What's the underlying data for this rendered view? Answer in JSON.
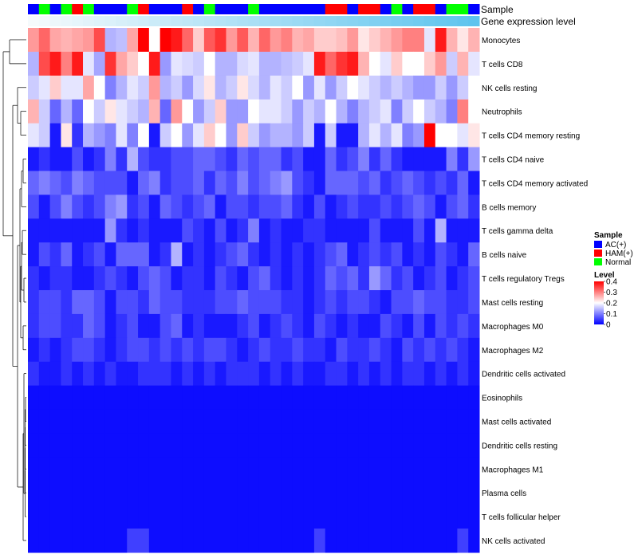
{
  "chart_data": {
    "type": "heatmap",
    "annotation_labels": {
      "sample": "Sample",
      "expression": "Gene expression level"
    },
    "legend_sample": {
      "title": "Sample",
      "items": [
        {
          "label": "AC(+)",
          "color": "#0000ff"
        },
        {
          "label": "HAM(+)",
          "color": "#ff0000"
        },
        {
          "label": "Normal",
          "color": "#00ff00"
        }
      ]
    },
    "legend_level": {
      "title": "Level",
      "range": [
        0,
        0.4
      ],
      "ticks": [
        "0.4",
        "0.3",
        "0.2",
        "0.1",
        "0"
      ],
      "tick_values": [
        0.4,
        0.3,
        0.2,
        0.1,
        0
      ],
      "colors": {
        "low": "#0000ff",
        "mid": "#ffffff",
        "high": "#ff0000",
        "mid_value": 0.2
      }
    },
    "expression_bar_color": "#5ec4ee",
    "sample_groups": [
      "AC",
      "N",
      "AC",
      "N",
      "H",
      "N",
      "AC",
      "AC",
      "AC",
      "N",
      "H",
      "AC",
      "AC",
      "AC",
      "H",
      "AC",
      "N",
      "AC",
      "AC",
      "AC",
      "N",
      "AC",
      "AC",
      "AC",
      "AC",
      "AC",
      "AC",
      "H",
      "H",
      "AC",
      "H",
      "H",
      "AC",
      "N",
      "AC",
      "H",
      "H",
      "AC",
      "N",
      "N",
      "AC"
    ],
    "rows": [
      {
        "label": "Monocytes",
        "values": [
          0.28,
          0.32,
          0.27,
          0.26,
          0.27,
          0.28,
          0.34,
          0.14,
          0.15,
          0.27,
          0.4,
          0.2,
          0.4,
          0.38,
          0.32,
          0.24,
          0.33,
          0.36,
          0.28,
          0.33,
          0.26,
          0.32,
          0.28,
          0.3,
          0.26,
          0.27,
          0.24,
          0.24,
          0.25,
          0.28,
          0.22,
          0.24,
          0.26,
          0.28,
          0.3,
          0.3,
          0.18,
          0.38,
          0.26,
          0.22,
          0.26
        ]
      },
      {
        "label": "T cells CD8",
        "values": [
          0.14,
          0.34,
          0.38,
          0.3,
          0.38,
          0.18,
          0.13,
          0.36,
          0.27,
          0.24,
          0.2,
          0.38,
          0.12,
          0.18,
          0.17,
          0.16,
          0.2,
          0.14,
          0.14,
          0.17,
          0.18,
          0.14,
          0.14,
          0.15,
          0.16,
          0.18,
          0.38,
          0.32,
          0.36,
          0.38,
          0.26,
          0.2,
          0.18,
          0.24,
          0.2,
          0.2,
          0.24,
          0.28,
          0.16,
          0.26,
          0.18
        ]
      },
      {
        "label": "NK cells resting",
        "values": [
          0.16,
          0.18,
          0.24,
          0.18,
          0.18,
          0.27,
          0.2,
          0.1,
          0.14,
          0.18,
          0.16,
          0.28,
          0.14,
          0.16,
          0.12,
          0.17,
          0.22,
          0.14,
          0.16,
          0.22,
          0.17,
          0.14,
          0.18,
          0.16,
          0.2,
          0.12,
          0.18,
          0.12,
          0.16,
          0.2,
          0.18,
          0.16,
          0.14,
          0.16,
          0.14,
          0.12,
          0.12,
          0.16,
          0.12,
          0.16,
          0.2
        ]
      },
      {
        "label": "Neutrophils",
        "values": [
          0.26,
          0.16,
          0.08,
          0.14,
          0.08,
          0.2,
          0.16,
          0.22,
          0.18,
          0.16,
          0.14,
          0.26,
          0.08,
          0.28,
          0.2,
          0.12,
          0.16,
          0.24,
          0.12,
          0.12,
          0.2,
          0.18,
          0.18,
          0.16,
          0.12,
          0.16,
          0.14,
          0.2,
          0.14,
          0.1,
          0.14,
          0.16,
          0.18,
          0.1,
          0.16,
          0.2,
          0.16,
          0.14,
          0.1,
          0.3,
          0.2
        ]
      },
      {
        "label": "T cells CD4 memory resting",
        "values": [
          0.18,
          0.16,
          0.02,
          0.22,
          0.04,
          0.14,
          0.12,
          0.1,
          0.18,
          0.1,
          0.2,
          0.02,
          0.16,
          0.2,
          0.12,
          0.18,
          0.24,
          0.2,
          0.12,
          0.24,
          0.16,
          0.12,
          0.14,
          0.14,
          0.12,
          0.16,
          0.02,
          0.16,
          0.02,
          0.02,
          0.14,
          0.18,
          0.14,
          0.18,
          0.1,
          0.12,
          0.4,
          0.2,
          0.2,
          0.18,
          0.22
        ]
      },
      {
        "label": "T cells CD4 naive",
        "values": [
          0.02,
          0.04,
          0.02,
          0.02,
          0.06,
          0.02,
          0.04,
          0.1,
          0.04,
          0.14,
          0.06,
          0.04,
          0.04,
          0.06,
          0.06,
          0.08,
          0.08,
          0.06,
          0.04,
          0.08,
          0.06,
          0.08,
          0.08,
          0.04,
          0.06,
          0.02,
          0.02,
          0.08,
          0.04,
          0.06,
          0.1,
          0.04,
          0.08,
          0.04,
          0.02,
          0.02,
          0.02,
          0.02,
          0.1,
          0.04,
          0.12
        ]
      },
      {
        "label": "T cells CD4 memory activated",
        "values": [
          0.08,
          0.1,
          0.08,
          0.06,
          0.1,
          0.08,
          0.06,
          0.06,
          0.06,
          0.02,
          0.08,
          0.1,
          0.04,
          0.06,
          0.06,
          0.08,
          0.04,
          0.08,
          0.06,
          0.1,
          0.06,
          0.08,
          0.1,
          0.12,
          0.06,
          0.04,
          0.02,
          0.08,
          0.08,
          0.08,
          0.06,
          0.08,
          0.04,
          0.06,
          0.08,
          0.06,
          0.04,
          0.06,
          0.04,
          0.08,
          0.02
        ]
      },
      {
        "label": "B cells memory",
        "values": [
          0.06,
          0.02,
          0.06,
          0.1,
          0.06,
          0.04,
          0.06,
          0.1,
          0.12,
          0.04,
          0.06,
          0.02,
          0.08,
          0.06,
          0.04,
          0.06,
          0.08,
          0.02,
          0.06,
          0.06,
          0.04,
          0.06,
          0.06,
          0.08,
          0.04,
          0.02,
          0.06,
          0.02,
          0.04,
          0.06,
          0.04,
          0.04,
          0.06,
          0.04,
          0.06,
          0.08,
          0.06,
          0.02,
          0.06,
          0.08,
          0.04
        ]
      },
      {
        "label": "T cells gamma delta",
        "values": [
          0.02,
          0.02,
          0.02,
          0.02,
          0.02,
          0.02,
          0.02,
          0.12,
          0.04,
          0.02,
          0.04,
          0.02,
          0.02,
          0.02,
          0.06,
          0.04,
          0.02,
          0.06,
          0.02,
          0.04,
          0.1,
          0.02,
          0.04,
          0.02,
          0.02,
          0.04,
          0.04,
          0.02,
          0.02,
          0.02,
          0.02,
          0.06,
          0.02,
          0.02,
          0.02,
          0.06,
          0.02,
          0.14,
          0.02,
          0.02,
          0.02
        ]
      },
      {
        "label": "B cells naive",
        "values": [
          0.02,
          0.06,
          0.04,
          0.08,
          0.02,
          0.04,
          0.06,
          0.02,
          0.08,
          0.08,
          0.08,
          0.02,
          0.04,
          0.14,
          0.02,
          0.04,
          0.02,
          0.04,
          0.06,
          0.08,
          0.04,
          0.02,
          0.04,
          0.02,
          0.04,
          0.02,
          0.04,
          0.06,
          0.08,
          0.02,
          0.04,
          0.06,
          0.04,
          0.06,
          0.02,
          0.04,
          0.02,
          0.06,
          0.04,
          0.02,
          0.08
        ]
      },
      {
        "label": "T cells regulatory  Tregs",
        "values": [
          0.04,
          0.02,
          0.04,
          0.04,
          0.02,
          0.02,
          0.04,
          0.06,
          0.04,
          0.02,
          0.06,
          0.08,
          0.06,
          0.02,
          0.04,
          0.04,
          0.02,
          0.06,
          0.04,
          0.02,
          0.06,
          0.08,
          0.04,
          0.02,
          0.04,
          0.02,
          0.04,
          0.08,
          0.06,
          0.08,
          0.04,
          0.12,
          0.08,
          0.04,
          0.06,
          0.02,
          0.04,
          0.06,
          0.02,
          0.04,
          0.06
        ]
      },
      {
        "label": "Mast cells resting",
        "values": [
          0.04,
          0.06,
          0.06,
          0.04,
          0.08,
          0.08,
          0.06,
          0.02,
          0.06,
          0.06,
          0.04,
          0.08,
          0.06,
          0.06,
          0.04,
          0.04,
          0.04,
          0.06,
          0.06,
          0.08,
          0.06,
          0.06,
          0.06,
          0.04,
          0.04,
          0.02,
          0.04,
          0.06,
          0.04,
          0.06,
          0.06,
          0.04,
          0.02,
          0.06,
          0.06,
          0.08,
          0.06,
          0.06,
          0.04,
          0.04,
          0.06
        ]
      },
      {
        "label": "Macrophages M0",
        "values": [
          0.04,
          0.06,
          0.06,
          0.04,
          0.04,
          0.08,
          0.06,
          0.02,
          0.04,
          0.06,
          0.02,
          0.02,
          0.06,
          0.08,
          0.02,
          0.04,
          0.02,
          0.02,
          0.02,
          0.04,
          0.06,
          0.02,
          0.04,
          0.06,
          0.04,
          0.02,
          0.06,
          0.04,
          0.02,
          0.04,
          0.02,
          0.02,
          0.06,
          0.04,
          0.02,
          0.06,
          0.02,
          0.06,
          0.04,
          0.06,
          0.04
        ]
      },
      {
        "label": "Macrophages M2",
        "values": [
          0.02,
          0.04,
          0.02,
          0.04,
          0.06,
          0.06,
          0.04,
          0.02,
          0.04,
          0.06,
          0.06,
          0.04,
          0.06,
          0.04,
          0.06,
          0.04,
          0.06,
          0.06,
          0.04,
          0.02,
          0.04,
          0.06,
          0.04,
          0.04,
          0.06,
          0.04,
          0.04,
          0.02,
          0.06,
          0.04,
          0.04,
          0.06,
          0.04,
          0.02,
          0.06,
          0.04,
          0.06,
          0.04,
          0.06,
          0.04,
          0.02
        ]
      },
      {
        "label": "Dendritic cells activated",
        "values": [
          0.04,
          0.02,
          0.02,
          0.04,
          0.02,
          0.04,
          0.02,
          0.04,
          0.02,
          0.02,
          0.04,
          0.04,
          0.04,
          0.02,
          0.04,
          0.02,
          0.04,
          0.02,
          0.04,
          0.04,
          0.04,
          0.02,
          0.04,
          0.02,
          0.04,
          0.02,
          0.02,
          0.04,
          0.04,
          0.02,
          0.04,
          0.02,
          0.04,
          0.02,
          0.04,
          0.04,
          0.02,
          0.04,
          0.02,
          0.04,
          0.02
        ]
      },
      {
        "label": "Eosinophils",
        "values": [
          0.01,
          0.01,
          0.01,
          0.01,
          0.01,
          0.01,
          0.01,
          0.01,
          0.01,
          0.01,
          0.01,
          0.01,
          0.01,
          0.01,
          0.01,
          0.01,
          0.01,
          0.01,
          0.01,
          0.01,
          0.01,
          0.01,
          0.01,
          0.01,
          0.01,
          0.01,
          0.01,
          0.01,
          0.01,
          0.01,
          0.01,
          0.01,
          0.01,
          0.01,
          0.01,
          0.01,
          0.01,
          0.01,
          0.01,
          0.01,
          0.01
        ]
      },
      {
        "label": "Mast cells activated",
        "values": [
          0.01,
          0.01,
          0.01,
          0.01,
          0.01,
          0.01,
          0.01,
          0.01,
          0.01,
          0.01,
          0.01,
          0.01,
          0.01,
          0.01,
          0.01,
          0.01,
          0.01,
          0.01,
          0.01,
          0.01,
          0.01,
          0.01,
          0.01,
          0.01,
          0.01,
          0.01,
          0.01,
          0.01,
          0.01,
          0.01,
          0.01,
          0.01,
          0.01,
          0.01,
          0.01,
          0.01,
          0.01,
          0.01,
          0.01,
          0.01,
          0.01
        ]
      },
      {
        "label": "Dendritic cells resting",
        "values": [
          0.01,
          0.01,
          0.01,
          0.01,
          0.01,
          0.01,
          0.01,
          0.01,
          0.01,
          0.01,
          0.01,
          0.01,
          0.01,
          0.01,
          0.01,
          0.01,
          0.01,
          0.01,
          0.01,
          0.01,
          0.01,
          0.01,
          0.01,
          0.01,
          0.01,
          0.01,
          0.01,
          0.01,
          0.01,
          0.01,
          0.01,
          0.01,
          0.01,
          0.01,
          0.01,
          0.01,
          0.01,
          0.01,
          0.01,
          0.01,
          0.01
        ]
      },
      {
        "label": "Macrophages M1",
        "values": [
          0.01,
          0.01,
          0.01,
          0.01,
          0.01,
          0.01,
          0.01,
          0.01,
          0.01,
          0.01,
          0.01,
          0.01,
          0.01,
          0.01,
          0.01,
          0.01,
          0.01,
          0.01,
          0.01,
          0.01,
          0.01,
          0.01,
          0.01,
          0.01,
          0.01,
          0.01,
          0.01,
          0.01,
          0.01,
          0.01,
          0.01,
          0.01,
          0.01,
          0.01,
          0.01,
          0.01,
          0.01,
          0.01,
          0.01,
          0.01,
          0.01
        ]
      },
      {
        "label": "Plasma cells",
        "values": [
          0.01,
          0.01,
          0.01,
          0.01,
          0.01,
          0.01,
          0.01,
          0.01,
          0.01,
          0.01,
          0.01,
          0.01,
          0.01,
          0.01,
          0.01,
          0.01,
          0.01,
          0.01,
          0.01,
          0.01,
          0.01,
          0.01,
          0.01,
          0.01,
          0.01,
          0.01,
          0.01,
          0.01,
          0.01,
          0.01,
          0.01,
          0.01,
          0.01,
          0.01,
          0.01,
          0.01,
          0.01,
          0.01,
          0.01,
          0.01,
          0.01
        ]
      },
      {
        "label": "T cells follicular helper",
        "values": [
          0.01,
          0.01,
          0.01,
          0.01,
          0.01,
          0.01,
          0.01,
          0.01,
          0.01,
          0.01,
          0.01,
          0.01,
          0.01,
          0.01,
          0.01,
          0.01,
          0.01,
          0.01,
          0.01,
          0.01,
          0.01,
          0.01,
          0.01,
          0.01,
          0.01,
          0.01,
          0.01,
          0.01,
          0.01,
          0.01,
          0.01,
          0.01,
          0.01,
          0.01,
          0.01,
          0.01,
          0.01,
          0.01,
          0.01,
          0.01,
          0.01
        ]
      },
      {
        "label": "NK cells activated",
        "values": [
          0.01,
          0.01,
          0.01,
          0.01,
          0.01,
          0.01,
          0.01,
          0.01,
          0.01,
          0.05,
          0.05,
          0.01,
          0.01,
          0.01,
          0.01,
          0.01,
          0.01,
          0.01,
          0.01,
          0.01,
          0.01,
          0.01,
          0.01,
          0.01,
          0.01,
          0.01,
          0.05,
          0.01,
          0.01,
          0.01,
          0.01,
          0.01,
          0.01,
          0.01,
          0.01,
          0.01,
          0.01,
          0.01,
          0.01,
          0.05,
          0.01
        ]
      }
    ]
  }
}
